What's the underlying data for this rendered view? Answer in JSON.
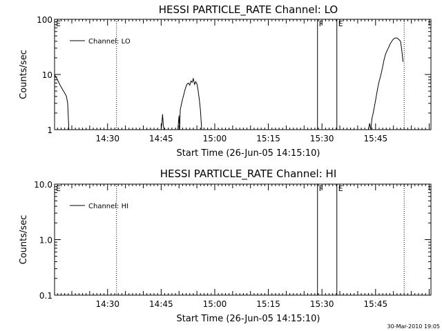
{
  "footer": {
    "timestamp": "30-Mar-2010 19:05"
  },
  "chart_data": [
    {
      "type": "line",
      "title": "HESSI PARTICLE_RATE Channel: LO",
      "xlabel": "Start Time (26-Jun-05 14:15:10)",
      "ylabel": "Counts/sec",
      "yscale": "log",
      "ylim": [
        1,
        100
      ],
      "yticks": [
        1,
        10,
        100
      ],
      "ytick_labels": [
        "1",
        "10",
        "100"
      ],
      "xlim": [
        "14:15:10",
        "16:00:30"
      ],
      "xtick_labels": [
        "14:30",
        "14:45",
        "15:00",
        "15:15",
        "15:30",
        "15:45"
      ],
      "legend": {
        "label": "Channel: LO",
        "position": "top-left"
      },
      "annotations": [
        {
          "label": "E",
          "at": "14:15:10",
          "style": "none"
        },
        {
          "label": "",
          "at": "14:32:30",
          "style": "dotted"
        },
        {
          "label": "F",
          "at": "15:28:45",
          "style": "solid"
        },
        {
          "label": "E",
          "at": "15:34:10",
          "style": "solid"
        },
        {
          "label": "",
          "at": "15:53:00",
          "style": "dotted"
        }
      ],
      "series": [
        {
          "name": "Channel: LO",
          "segments": [
            {
              "x": [
                "14:15:10",
                "14:15:30",
                "14:15:50",
                "14:16:10",
                "14:16:30",
                "14:16:50",
                "14:17:10",
                "14:17:30",
                "14:17:50",
                "14:18:10",
                "14:18:30",
                "14:18:50",
                "14:19:10"
              ],
              "y": [
                10,
                9,
                8.4,
                7.6,
                6.8,
                6.2,
                5.7,
                5.2,
                4.8,
                4.4,
                4.0,
                3.0,
                1.0
              ]
            },
            {
              "x": [
                "14:45:00",
                "14:45:12",
                "14:45:24",
                "14:45:36",
                "14:45:48"
              ],
              "y": [
                1.0,
                1.3,
                1.9,
                1.2,
                1.0
              ]
            },
            {
              "x": [
                "14:49:40",
                "14:50:00",
                "14:50:10",
                "14:50:20",
                "14:50:40",
                "14:51:00",
                "14:51:20",
                "14:51:40",
                "14:52:00",
                "14:52:20",
                "14:52:40",
                "14:53:00",
                "14:53:20",
                "14:53:40",
                "14:54:00",
                "14:54:20",
                "14:54:40",
                "14:55:00",
                "14:55:20",
                "14:55:40",
                "14:56:00",
                "14:56:20"
              ],
              "y": [
                1.0,
                1.8,
                1.0,
                2.3,
                2.9,
                3.6,
                4.3,
                5.3,
                6.2,
                6.8,
                7.0,
                6.4,
                7.6,
                7.2,
                8.4,
                6.6,
                7.4,
                6.8,
                5.2,
                3.6,
                2.2,
                1.0
              ]
            },
            {
              "x": [
                "15:43:00",
                "15:43:20",
                "15:43:40",
                "15:44:00",
                "15:44:20",
                "15:44:40",
                "15:45:00",
                "15:45:20",
                "15:45:40",
                "15:46:00",
                "15:46:20",
                "15:46:40",
                "15:47:00",
                "15:47:20",
                "15:47:40",
                "15:48:00",
                "15:48:20",
                "15:48:40",
                "15:49:00",
                "15:49:20",
                "15:49:40",
                "15:50:00",
                "15:50:20",
                "15:50:40",
                "15:51:00",
                "15:51:20",
                "15:51:40",
                "15:52:00",
                "15:52:20",
                "15:52:40"
              ],
              "y": [
                1.0,
                1.3,
                1.0,
                1.6,
                2.0,
                2.6,
                3.4,
                4.5,
                6.0,
                7.5,
                9.0,
                11,
                14,
                18,
                22,
                25,
                28,
                31,
                35,
                38,
                41,
                44,
                45,
                46,
                46,
                44,
                42,
                40,
                28,
                17
              ]
            }
          ]
        }
      ]
    },
    {
      "type": "line",
      "title": "HESSI PARTICLE_RATE Channel: HI",
      "xlabel": "Start Time (26-Jun-05 14:15:10)",
      "ylabel": "Counts/sec",
      "yscale": "log",
      "ylim": [
        0.1,
        10
      ],
      "yticks": [
        0.1,
        1,
        10
      ],
      "ytick_labels": [
        "0.1",
        "1.0",
        "10.0"
      ],
      "xlim": [
        "14:15:10",
        "16:00:30"
      ],
      "xtick_labels": [
        "14:30",
        "14:45",
        "15:00",
        "15:15",
        "15:30",
        "15:45"
      ],
      "legend": {
        "label": "Channel: HI",
        "position": "top-left"
      },
      "annotations": [
        {
          "label": "E",
          "at": "14:15:10",
          "style": "none"
        },
        {
          "label": "",
          "at": "14:32:30",
          "style": "dotted"
        },
        {
          "label": "F",
          "at": "15:28:45",
          "style": "solid"
        },
        {
          "label": "E",
          "at": "15:34:10",
          "style": "solid"
        },
        {
          "label": "",
          "at": "15:53:00",
          "style": "dotted"
        }
      ],
      "series": [
        {
          "name": "Channel: HI",
          "segments": []
        }
      ]
    }
  ]
}
